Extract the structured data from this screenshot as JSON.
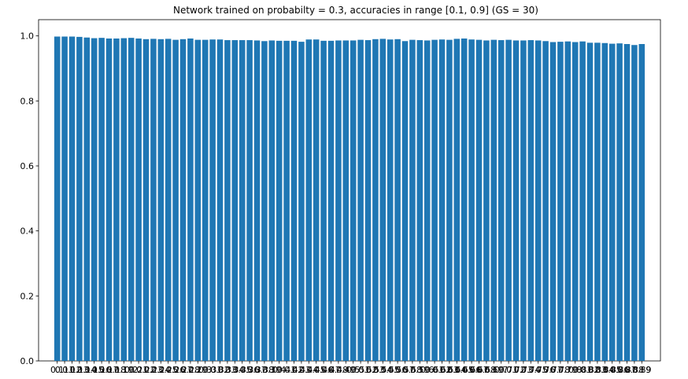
{
  "chart_data": {
    "type": "bar",
    "title": "Network trained on probabilty = 0.3, accuracies in range [0.1, 0.9] (GS = 30)",
    "xlabel": "",
    "ylabel": "",
    "ylim": [
      0,
      1.05
    ],
    "yticks": [
      0.0,
      0.2,
      0.4,
      0.6,
      0.8,
      1.0
    ],
    "ytick_labels": [
      "0.0",
      "0.2",
      "0.4",
      "0.6",
      "0.8",
      "1.0"
    ],
    "categories": [
      "0.1",
      "0.11",
      "0.12",
      "0.13",
      "0.14",
      "0.15",
      "0.16",
      "0.17",
      "0.18",
      "0.19",
      "0.2",
      "0.21",
      "0.22",
      "0.23",
      "0.24",
      "0.25",
      "0.26",
      "0.27",
      "0.28",
      "0.29",
      "0.3",
      "0.31",
      "0.32",
      "0.33",
      "0.34",
      "0.35",
      "0.36",
      "0.37",
      "0.38",
      "0.39",
      "0.4",
      "0.41",
      "0.42",
      "0.43",
      "0.44",
      "0.45",
      "0.46",
      "0.47",
      "0.48",
      "0.49",
      "0.5",
      "0.51",
      "0.52",
      "0.53",
      "0.54",
      "0.55",
      "0.56",
      "0.57",
      "0.58",
      "0.59",
      "0.6",
      "0.61",
      "0.62",
      "0.63",
      "0.64",
      "0.65",
      "0.66",
      "0.67",
      "0.68",
      "0.69",
      "0.7",
      "0.71",
      "0.72",
      "0.73",
      "0.74",
      "0.75",
      "0.76",
      "0.77",
      "0.78",
      "0.79",
      "0.8",
      "0.81",
      "0.82",
      "0.83",
      "0.84",
      "0.85",
      "0.86",
      "0.87",
      "0.88",
      "0.89"
    ],
    "values": [
      0.998,
      0.998,
      0.998,
      0.997,
      0.995,
      0.993,
      0.994,
      0.992,
      0.992,
      0.993,
      0.994,
      0.992,
      0.99,
      0.991,
      0.99,
      0.991,
      0.988,
      0.99,
      0.992,
      0.988,
      0.988,
      0.989,
      0.989,
      0.987,
      0.987,
      0.987,
      0.987,
      0.986,
      0.984,
      0.986,
      0.985,
      0.985,
      0.985,
      0.982,
      0.989,
      0.989,
      0.985,
      0.985,
      0.986,
      0.986,
      0.986,
      0.988,
      0.987,
      0.99,
      0.991,
      0.989,
      0.99,
      0.984,
      0.988,
      0.987,
      0.986,
      0.988,
      0.989,
      0.988,
      0.991,
      0.992,
      0.989,
      0.988,
      0.986,
      0.988,
      0.987,
      0.988,
      0.986,
      0.986,
      0.987,
      0.986,
      0.984,
      0.981,
      0.982,
      0.983,
      0.981,
      0.983,
      0.979,
      0.979,
      0.978,
      0.976,
      0.977,
      0.975,
      0.972,
      0.975
    ],
    "last_tick_label": "9",
    "bar_color": "#1f77b4",
    "grid": false,
    "legend": "none"
  }
}
